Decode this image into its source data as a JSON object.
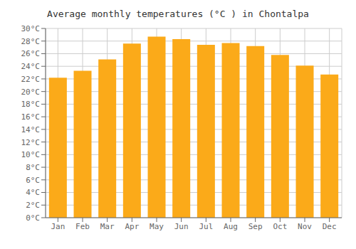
{
  "chart_data": {
    "type": "bar",
    "title": "Average monthly temperatures (°C ) in Chontalpa",
    "categories": [
      "Jan",
      "Feb",
      "Mar",
      "Apr",
      "May",
      "Jun",
      "Jul",
      "Aug",
      "Sep",
      "Oct",
      "Nov",
      "Dec"
    ],
    "values": [
      22.2,
      23.3,
      25.1,
      27.6,
      28.7,
      28.3,
      27.4,
      27.7,
      27.2,
      25.8,
      24.1,
      22.7
    ],
    "color": "#FBAA19",
    "ylim": [
      0,
      30
    ],
    "yticks": [
      {
        "value": 0,
        "label": "0°C"
      },
      {
        "value": 2,
        "label": "2°C"
      },
      {
        "value": 4,
        "label": "4°C"
      },
      {
        "value": 6,
        "label": "6°C"
      },
      {
        "value": 8,
        "label": "8°C"
      },
      {
        "value": 10,
        "label": "10°C"
      },
      {
        "value": 12,
        "label": "12°C"
      },
      {
        "value": 14,
        "label": "14°C"
      },
      {
        "value": 16,
        "label": "16°C"
      },
      {
        "value": 18,
        "label": "18°C"
      },
      {
        "value": 20,
        "label": "20°C"
      },
      {
        "value": 22,
        "label": "22°C"
      },
      {
        "value": 24,
        "label": "24°C"
      },
      {
        "value": 26,
        "label": "26°C"
      },
      {
        "value": 28,
        "label": "28°C"
      },
      {
        "value": 30,
        "label": "30°C"
      }
    ],
    "grid": true
  }
}
